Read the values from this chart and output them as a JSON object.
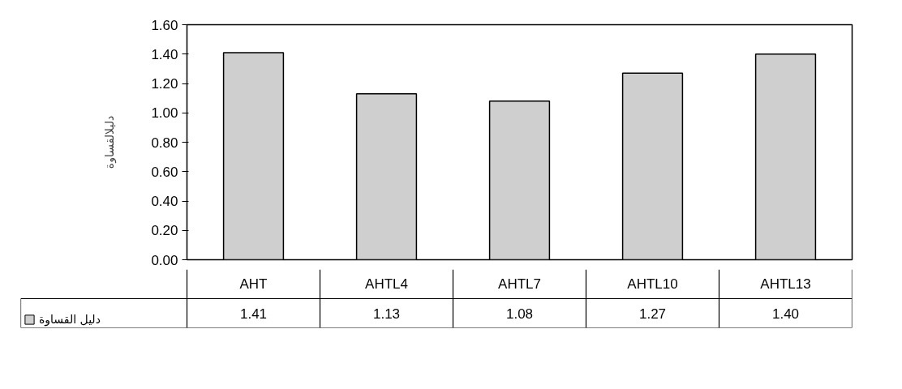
{
  "chart_data": {
    "type": "bar",
    "ylabel": "دليلالقساوة",
    "categories": [
      "AHT",
      "AHTL4",
      "AHTL7",
      "AHTL10",
      "AHTL13"
    ],
    "series": [
      {
        "name": "دليل القساوة",
        "color": "#cfcfcf",
        "values": [
          1.41,
          1.13,
          1.08,
          1.27,
          1.4
        ],
        "value_labels": [
          "1.41",
          "1.13",
          "1.08",
          "1.27",
          "1.40"
        ]
      }
    ],
    "ylim": [
      0,
      1.6
    ],
    "yticks": [
      {
        "value": 0,
        "label": "0.00"
      },
      {
        "value": 0.2,
        "label": "0.20"
      },
      {
        "value": 0.4,
        "label": "0.40"
      },
      {
        "value": 0.6,
        "label": "0.60"
      },
      {
        "value": 0.8,
        "label": "0.80"
      },
      {
        "value": 1.0,
        "label": "1.00"
      },
      {
        "value": 1.2,
        "label": "1.20"
      },
      {
        "value": 1.4,
        "label": "1.40"
      },
      {
        "value": 1.6,
        "label": "1.60"
      }
    ],
    "grid": false,
    "legend": "bottom"
  }
}
